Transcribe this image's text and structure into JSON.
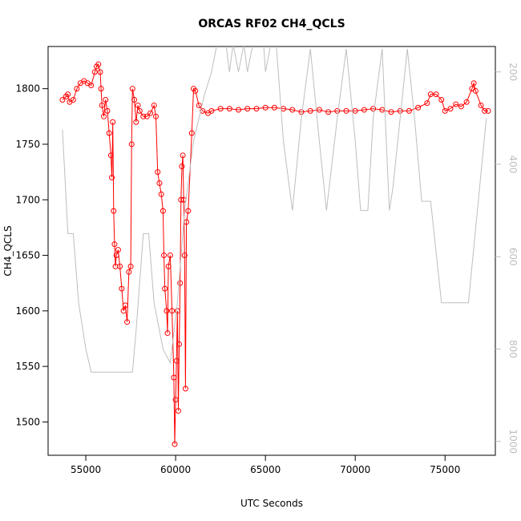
{
  "chart_data": {
    "type": "line",
    "title": "ORCAS RF02 CH4_QCLS",
    "xlabel": "UTC Seconds",
    "ylabel": "CH4_QCLS",
    "xlim": [
      52900,
      77800
    ],
    "xticks": [
      55000,
      60000,
      65000,
      70000,
      75000
    ],
    "ylim": [
      1470,
      1838
    ],
    "yticks": [
      1500,
      1550,
      1600,
      1650,
      1700,
      1750,
      1800
    ],
    "y2lim": [
      1030,
      145
    ],
    "y2ticks": [
      200,
      400,
      600,
      800,
      1000
    ],
    "series": [
      {
        "color": "#ff0000",
        "markers": true,
        "x": [
          53700,
          53900,
          54000,
          54100,
          54300,
          54500,
          54700,
          54900,
          55100,
          55300,
          55500,
          55600,
          55700,
          55800,
          55850,
          55900,
          56000,
          56100,
          56200,
          56300,
          56400,
          56450,
          56500,
          56550,
          56600,
          56650,
          56700,
          56800,
          56900,
          57000,
          57100,
          57200,
          57300,
          57400,
          57500,
          57550,
          57600,
          57700,
          57800,
          57900,
          58000,
          58200,
          58400,
          58600,
          58800,
          58900,
          59000,
          59100,
          59200,
          59300,
          59350,
          59400,
          59500,
          59550,
          59600,
          59700,
          59800,
          59900,
          59950,
          60000,
          60050,
          60100,
          60150,
          60200,
          60250,
          60300,
          60350,
          60400,
          60450,
          60500,
          60550,
          60600,
          60700,
          60900,
          61000,
          61100,
          61300,
          61500,
          61800,
          62000,
          62500,
          63000,
          63500,
          64000,
          64500,
          65000,
          65500,
          66000,
          66500,
          67000,
          67500,
          68000,
          68500,
          69000,
          69500,
          70000,
          70500,
          71000,
          71500,
          72000,
          72500,
          73000,
          73500,
          74000,
          74200,
          74500,
          74800,
          75000,
          75300,
          75600,
          75900,
          76200,
          76500,
          76600,
          76700,
          77000,
          77200,
          77400
        ],
        "values": [
          1790,
          1793,
          1795,
          1788,
          1790,
          1800,
          1805,
          1807,
          1805,
          1803,
          1815,
          1820,
          1822,
          1815,
          1800,
          1785,
          1775,
          1790,
          1780,
          1760,
          1740,
          1720,
          1770,
          1690,
          1660,
          1640,
          1650,
          1655,
          1640,
          1620,
          1600,
          1605,
          1590,
          1635,
          1640,
          1750,
          1800,
          1790,
          1770,
          1785,
          1780,
          1775,
          1775,
          1778,
          1785,
          1775,
          1725,
          1715,
          1705,
          1690,
          1650,
          1620,
          1600,
          1580,
          1640,
          1650,
          1600,
          1540,
          1480,
          1520,
          1555,
          1600,
          1510,
          1570,
          1625,
          1700,
          1730,
          1740,
          1700,
          1650,
          1530,
          1680,
          1690,
          1760,
          1800,
          1798,
          1785,
          1780,
          1778,
          1780,
          1782,
          1782,
          1781,
          1782,
          1782,
          1783,
          1783,
          1782,
          1781,
          1779,
          1780,
          1781,
          1779,
          1780,
          1780,
          1780,
          1781,
          1782,
          1781,
          1779,
          1780,
          1780,
          1783,
          1787,
          1795,
          1795,
          1790,
          1780,
          1782,
          1786,
          1784,
          1788,
          1800,
          1805,
          1798,
          1785,
          1780,
          1780
        ]
      },
      {
        "color": "#bebebe",
        "axis": "y2",
        "x": [
          53700,
          54000,
          54300,
          54600,
          55000,
          55300,
          57600,
          57800,
          58200,
          58500,
          58800,
          59300,
          59700,
          60100,
          60500,
          61000,
          61600,
          62000,
          62300,
          62800,
          63000,
          63200,
          63500,
          63800,
          64000,
          64300,
          64900,
          65000,
          65300,
          65600,
          66000,
          66500,
          67000,
          67500,
          68000,
          68400,
          69000,
          69500,
          70000,
          70300,
          70700,
          71000,
          71500,
          71900,
          72100,
          72500,
          72900,
          73300,
          73700,
          74200,
          74800,
          76300,
          77300
        ],
        "values": [
          325,
          550,
          550,
          700,
          800,
          850,
          850,
          760,
          550,
          550,
          700,
          800,
          830,
          700,
          500,
          350,
          250,
          200,
          140,
          140,
          200,
          140,
          200,
          140,
          200,
          140,
          140,
          200,
          140,
          140,
          350,
          500,
          300,
          150,
          350,
          500,
          300,
          150,
          350,
          500,
          500,
          300,
          150,
          500,
          450,
          300,
          150,
          300,
          480,
          480,
          700,
          700,
          300
        ]
      }
    ]
  }
}
